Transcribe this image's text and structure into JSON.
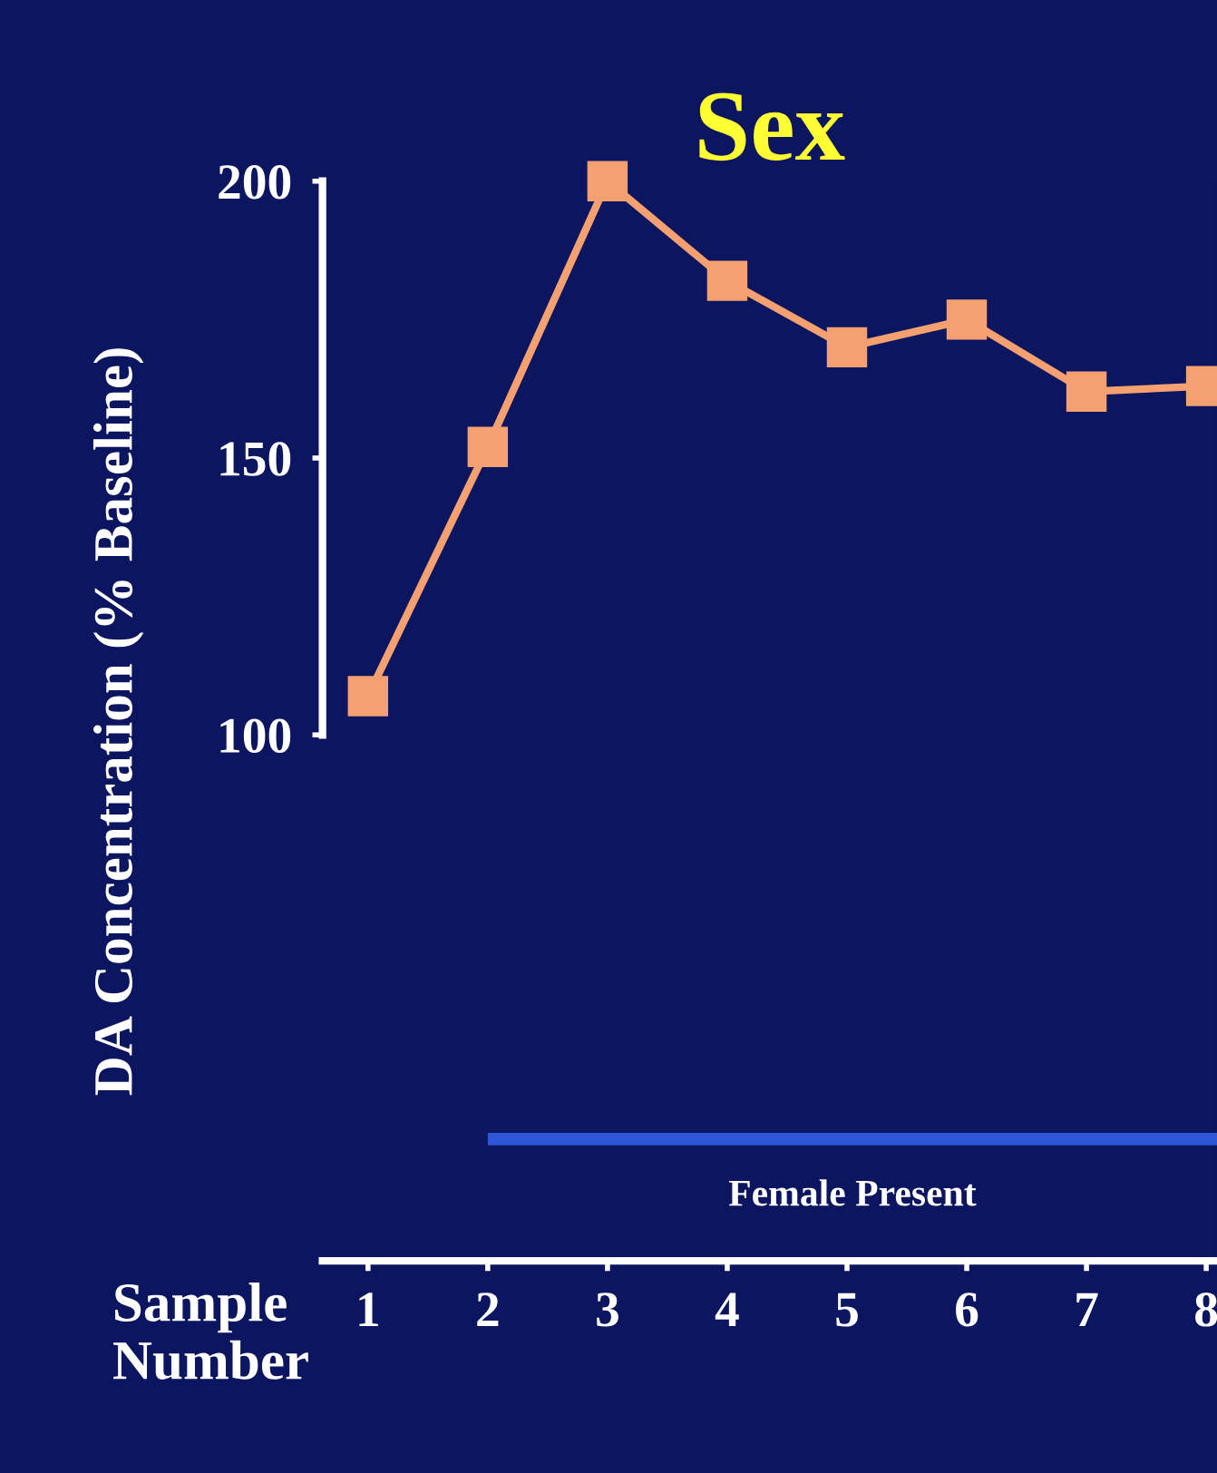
{
  "chart_data": {
    "type": "line",
    "title": "Sex",
    "xlabel": "Sample\nNumber",
    "ylabel": "DA Concentration (% Baseline)",
    "x": [
      1,
      2,
      3,
      4,
      5,
      6,
      7,
      8
    ],
    "series": [
      {
        "color": "#f4a070",
        "values": [
          107,
          152,
          200,
          182,
          170,
          175,
          162,
          163
        ]
      },
      {
        "name": "Female Present",
        "color": "#2f55d8",
        "x": [
          2,
          8.09
        ],
        "values": [
          27,
          27
        ],
        "marker": "none"
      }
    ],
    "xlim": [
      0.62,
      8.09
    ],
    "xticks": [
      1,
      2,
      3,
      4,
      5,
      6,
      7,
      8
    ],
    "ylim": [
      5,
      200
    ],
    "yticks": [
      100,
      150,
      200
    ],
    "marker": "square",
    "line_style": "solid",
    "grid": false,
    "legend": false
  }
}
